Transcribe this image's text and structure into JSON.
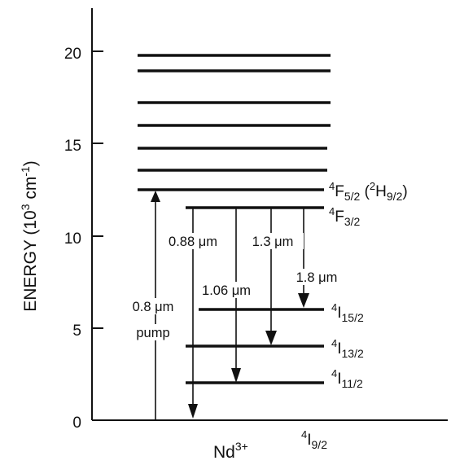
{
  "diagram": {
    "axis": {
      "title_main": "ENERGY (10",
      "title_exp": "3",
      "title_mid": " cm",
      "title_exp2": "-1",
      "title_end": ")",
      "ticks": [
        {
          "value": 0,
          "label": "0"
        },
        {
          "value": 5,
          "label": "5"
        },
        {
          "value": 10,
          "label": "10"
        },
        {
          "value": 15,
          "label": "15"
        },
        {
          "value": 20,
          "label": "20"
        }
      ]
    },
    "species": {
      "base": "Nd",
      "sup": "3+"
    },
    "levels": {
      "high_bands": [
        19.8,
        19.0,
        17.3,
        16.0,
        14.8,
        13.5
      ],
      "F52": {
        "energy": 12.5,
        "sup": "4",
        "base": "F",
        "sub": "5/2",
        "extra_open": " (",
        "extra_sup": "2",
        "extra_base": "H",
        "extra_sub": "9/2",
        "extra_close": ")"
      },
      "F32": {
        "energy": 11.5,
        "sup": "4",
        "base": "F",
        "sub": "3/2"
      },
      "I152": {
        "energy": 6.0,
        "sup": "4",
        "base": "I",
        "sub": "15/2"
      },
      "I132": {
        "energy": 4.0,
        "sup": "4",
        "base": "I",
        "sub": "13/2"
      },
      "I112": {
        "energy": 2.0,
        "sup": "4",
        "base": "I",
        "sub": "11/2"
      },
      "I92": {
        "energy": 0.0,
        "sup": "4",
        "base": "I",
        "sub": "9/2"
      }
    },
    "transitions": {
      "pump": {
        "line1": "0.8 μm",
        "line2": "pump"
      },
      "t088": "0.88 μm",
      "t106": "1.06 μm",
      "t13": "1.3 μm",
      "t18": "1.8 μm"
    }
  }
}
